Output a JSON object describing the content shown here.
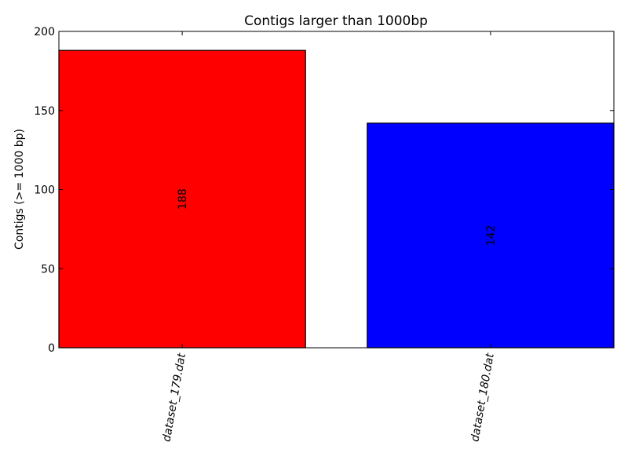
{
  "chart_data": {
    "type": "bar",
    "title": "Contigs larger than 1000bp",
    "xlabel": "",
    "ylabel": "Contigs (>= 1000 bp)",
    "categories": [
      "dataset_179.dat",
      "dataset_180.dat"
    ],
    "values": [
      188,
      142
    ],
    "data_labels": [
      "188",
      "142"
    ],
    "bar_colors": [
      "#ff0000",
      "#0000ff"
    ],
    "ylim": [
      0,
      200
    ],
    "yticks": [
      0,
      50,
      100,
      150,
      200
    ],
    "ytick_labels": [
      "0",
      "50",
      "100",
      "150",
      "200"
    ],
    "grid": false,
    "legend": "none"
  }
}
